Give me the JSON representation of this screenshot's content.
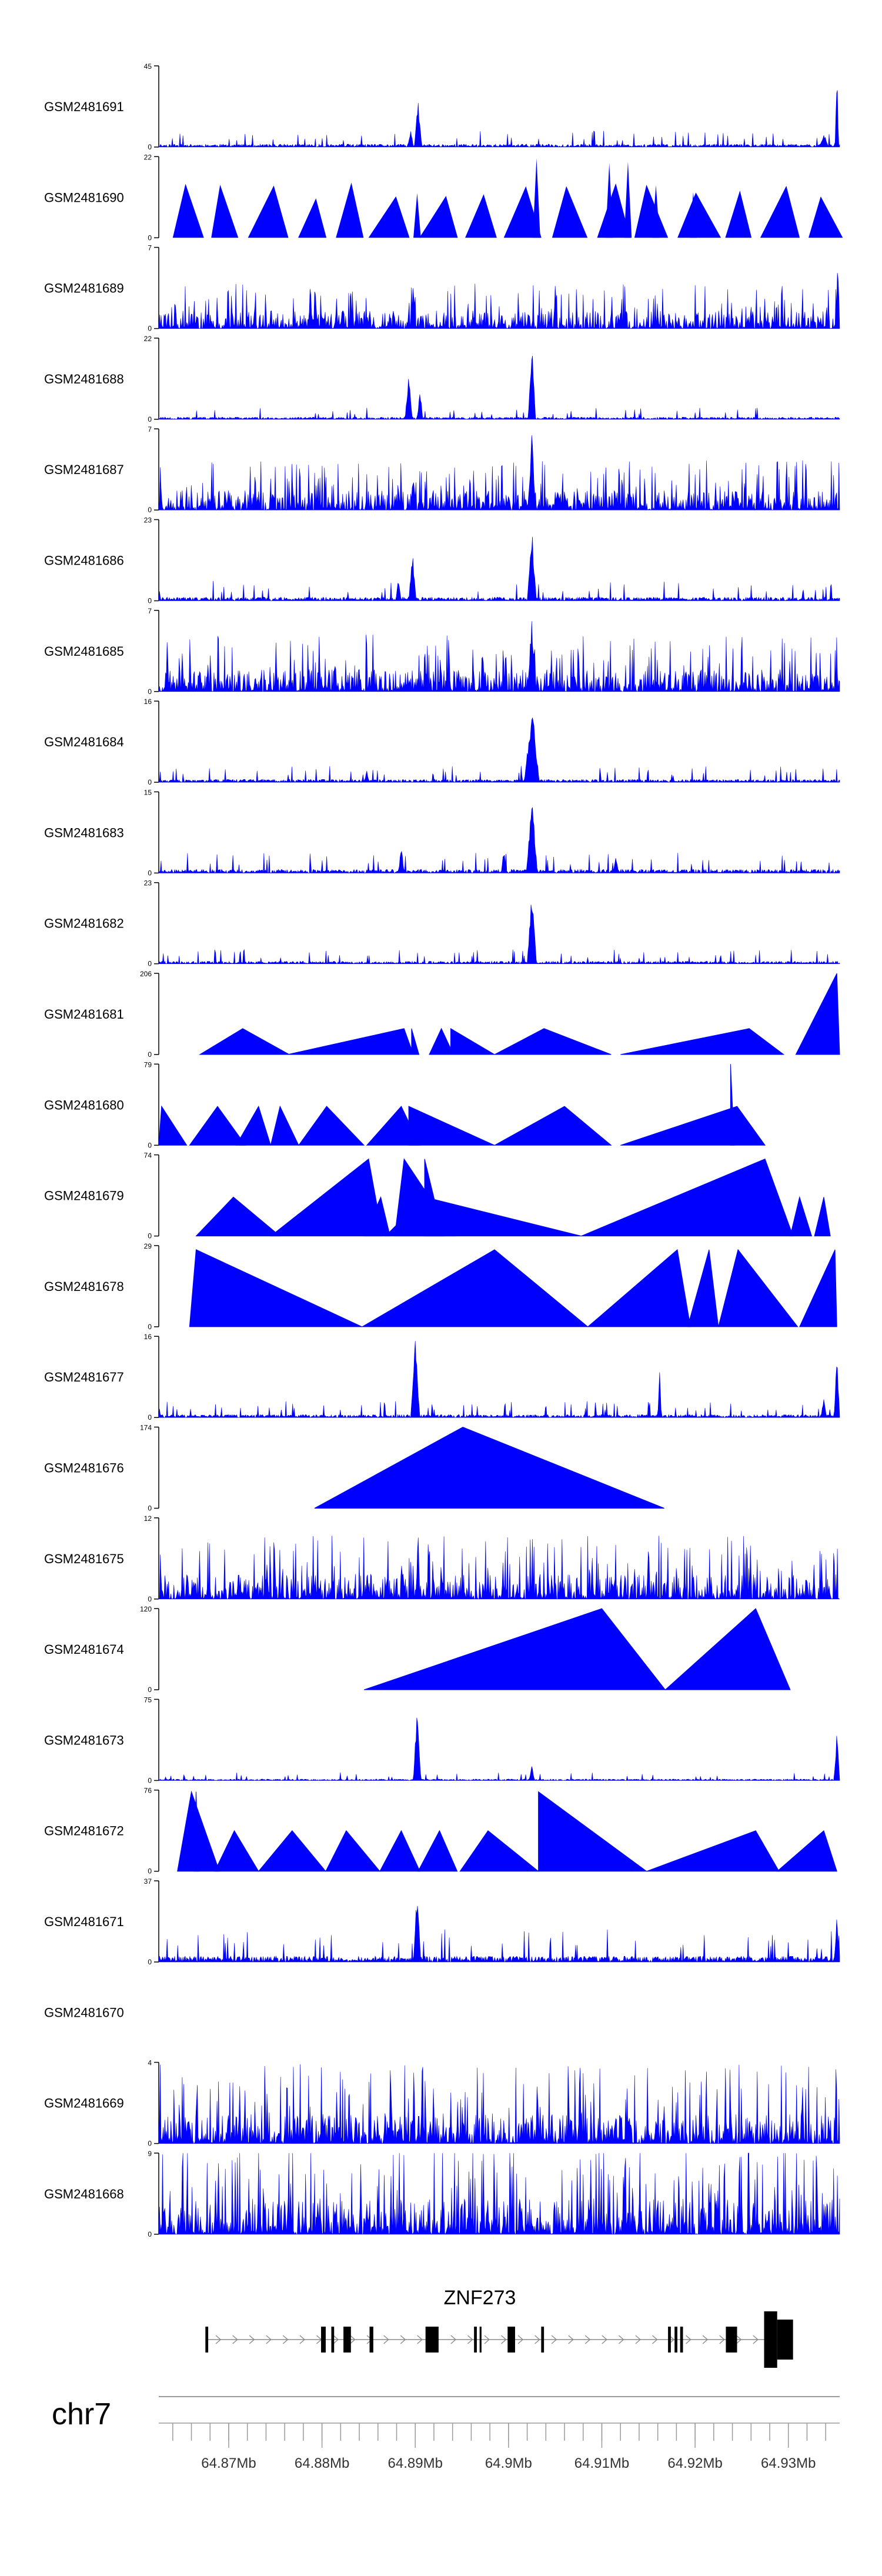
{
  "chart_data": {
    "type": "area",
    "chromosome": "chr7",
    "x_axis": {
      "min": 64.8625,
      "max": 64.9355,
      "tick_labels": [
        "64.87Mb",
        "64.88Mb",
        "64.89Mb",
        "64.9Mb",
        "64.91Mb",
        "64.92Mb",
        "64.93Mb"
      ],
      "tick_values": [
        64.87,
        64.88,
        64.89,
        64.9,
        64.91,
        64.92,
        64.93
      ],
      "minor_step": 0.002
    },
    "gene": {
      "name": "ZNF273",
      "strand": "+",
      "start": 64.8675,
      "end": 64.9305,
      "exons": [
        {
          "s": 64.8675,
          "e": 64.8678,
          "h": "mid"
        },
        {
          "s": 64.8799,
          "e": 64.8804,
          "h": "mid"
        },
        {
          "s": 64.881,
          "e": 64.8813,
          "h": "mid"
        },
        {
          "s": 64.8823,
          "e": 64.8831,
          "h": "mid"
        },
        {
          "s": 64.8851,
          "e": 64.8855,
          "h": "mid"
        },
        {
          "s": 64.8911,
          "e": 64.8925,
          "h": "mid"
        },
        {
          "s": 64.8963,
          "e": 64.8966,
          "h": "mid"
        },
        {
          "s": 64.8969,
          "e": 64.8971,
          "h": "mid"
        },
        {
          "s": 64.8999,
          "e": 64.9007,
          "h": "mid"
        },
        {
          "s": 64.9035,
          "e": 64.9038,
          "h": "mid"
        },
        {
          "s": 64.9171,
          "e": 64.9174,
          "h": "mid"
        },
        {
          "s": 64.9178,
          "e": 64.9181,
          "h": "mid"
        },
        {
          "s": 64.9184,
          "e": 64.9187,
          "h": "mid"
        },
        {
          "s": 64.9233,
          "e": 64.9245,
          "h": "mid"
        },
        {
          "s": 64.9274,
          "e": 64.9288,
          "h": "tall"
        },
        {
          "s": 64.9288,
          "e": 64.9305,
          "h": "big"
        }
      ]
    },
    "series": [
      {
        "name": "GSM2481691",
        "ymin": 0,
        "ymax": 45,
        "style": "noisy",
        "base": 0.04,
        "peaks": [
          {
            "x": 64.8903,
            "h": 0.62,
            "w": 0.0004
          },
          {
            "x": 64.8895,
            "h": 0.25,
            "w": 0.0003
          },
          {
            "x": 64.9338,
            "h": 0.18,
            "w": 0.0005
          },
          {
            "x": 64.9352,
            "h": 1.0,
            "w": 0.0002
          }
        ],
        "seed": 11
      },
      {
        "name": "GSM2481690",
        "ymin": 0,
        "ymax": 22,
        "style": "triangles",
        "base": 0.6,
        "spikes": [
          {
            "x": 64.903,
            "h": 0.98
          },
          {
            "x": 64.9108,
            "h": 0.92
          },
          {
            "x": 64.9128,
            "h": 0.94
          },
          {
            "x": 64.9158,
            "h": 0.65
          },
          {
            "x": 64.9198,
            "h": 0.56
          },
          {
            "x": 64.8902,
            "h": 0.55
          }
        ],
        "seed": 22
      },
      {
        "name": "GSM2481689",
        "ymin": 0,
        "ymax": 7,
        "style": "dense",
        "base": 0.2,
        "peaks": [
          {
            "x": 64.9353,
            "h": 1.0,
            "w": 0.0002
          },
          {
            "x": 64.8793,
            "h": 0.62,
            "w": 0.0002
          },
          {
            "x": 64.8898,
            "h": 0.6,
            "w": 0.0003
          }
        ],
        "seed": 33
      },
      {
        "name": "GSM2481688",
        "ymin": 0,
        "ymax": 22,
        "style": "noisy",
        "base": 0.03,
        "peaks": [
          {
            "x": 64.9025,
            "h": 1.0,
            "w": 0.0004
          },
          {
            "x": 64.8893,
            "h": 0.58,
            "w": 0.0004
          },
          {
            "x": 64.8905,
            "h": 0.4,
            "w": 0.0003
          }
        ],
        "seed": 44
      },
      {
        "name": "GSM2481687",
        "ymin": 0,
        "ymax": 7,
        "style": "dense",
        "base": 0.22,
        "peaks": [
          {
            "x": 64.9025,
            "h": 1.0,
            "w": 0.0004
          },
          {
            "x": 64.8898,
            "h": 0.55,
            "w": 0.0003
          }
        ],
        "seed": 55
      },
      {
        "name": "GSM2481686",
        "ymin": 0,
        "ymax": 23,
        "style": "noisy",
        "base": 0.05,
        "peaks": [
          {
            "x": 64.9025,
            "h": 0.95,
            "w": 0.0005
          },
          {
            "x": 64.8897,
            "h": 0.62,
            "w": 0.0004
          },
          {
            "x": 64.8882,
            "h": 0.3,
            "w": 0.0003
          }
        ],
        "seed": 66
      },
      {
        "name": "GSM2481685",
        "ymin": 0,
        "ymax": 7,
        "style": "dense",
        "base": 0.25,
        "peaks": [
          {
            "x": 64.9025,
            "h": 0.92,
            "w": 0.0005
          }
        ],
        "seed": 77
      },
      {
        "name": "GSM2481684",
        "ymin": 0,
        "ymax": 16,
        "style": "noisy",
        "base": 0.04,
        "peaks": [
          {
            "x": 64.9025,
            "h": 0.98,
            "w": 0.0008
          },
          {
            "x": 64.8848,
            "h": 0.15,
            "w": 0.0003
          }
        ],
        "seed": 88
      },
      {
        "name": "GSM2481683",
        "ymin": 0,
        "ymax": 15,
        "style": "noisy",
        "base": 0.05,
        "peaks": [
          {
            "x": 64.9025,
            "h": 0.98,
            "w": 0.0006
          },
          {
            "x": 64.8885,
            "h": 0.38,
            "w": 0.0003
          },
          {
            "x": 64.8995,
            "h": 0.3,
            "w": 0.0003
          },
          {
            "x": 64.9115,
            "h": 0.22,
            "w": 0.0003
          }
        ],
        "seed": 99
      },
      {
        "name": "GSM2481682",
        "ymin": 0,
        "ymax": 23,
        "style": "noisy",
        "base": 0.035,
        "peaks": [
          {
            "x": 64.9025,
            "h": 1.0,
            "w": 0.0005
          }
        ],
        "seed": 111
      },
      {
        "name": "GSM2481681",
        "ymin": 0,
        "ymax": 206,
        "style": "sparse",
        "tris": [
          [
            64.8669,
            64.8715,
            64.8765,
            0.32
          ],
          [
            64.8763,
            64.8888,
            64.8898,
            0.32
          ],
          [
            64.8896,
            64.8896,
            64.8904,
            0.32
          ],
          [
            64.8915,
            64.8928,
            64.8941,
            0.32
          ],
          [
            64.8938,
            64.8938,
            64.8985,
            0.32
          ],
          [
            64.8985,
            64.9038,
            64.911,
            0.32
          ],
          [
            64.912,
            64.9258,
            64.9295,
            0.32
          ],
          [
            64.9308,
            64.9352,
            64.9355,
            1.0
          ]
        ]
      },
      {
        "name": "GSM2481680",
        "ymin": 0,
        "ymax": 79,
        "style": "sparse",
        "tris": [
          [
            64.8625,
            64.8628,
            64.8655,
            0.48
          ],
          [
            64.8658,
            64.8688,
            64.8718,
            0.48
          ],
          [
            64.8708,
            64.8732,
            64.8745,
            0.48
          ],
          [
            64.8745,
            64.8755,
            64.8775,
            0.48
          ],
          [
            64.8775,
            64.8805,
            64.8845,
            0.48
          ],
          [
            64.8848,
            64.8885,
            64.8905,
            0.48
          ],
          [
            64.8893,
            64.8893,
            64.8985,
            0.48
          ],
          [
            64.8985,
            64.906,
            64.911,
            0.48
          ],
          [
            64.912,
            64.9245,
            64.9275,
            0.48
          ],
          [
            64.9238,
            64.9238,
            64.9242,
            1.0
          ]
        ]
      },
      {
        "name": "GSM2481679",
        "ymin": 0,
        "ymax": 74,
        "style": "sparse",
        "tris": [
          [
            64.8665,
            64.8705,
            64.8755,
            0.48
          ],
          [
            64.8745,
            64.885,
            64.8865,
            0.95
          ],
          [
            64.8845,
            64.8863,
            64.8873,
            0.48
          ],
          [
            64.8878,
            64.8888,
            64.8943,
            0.95
          ],
          [
            64.8868,
            64.891,
            64.9078,
            0.48
          ],
          [
            64.891,
            64.891,
            64.893,
            0.95
          ],
          [
            64.9078,
            64.9275,
            64.9305,
            0.95
          ],
          [
            64.9302,
            64.9312,
            64.9325,
            0.48
          ],
          [
            64.9328,
            64.9338,
            64.9345,
            0.48
          ]
        ]
      },
      {
        "name": "GSM2481678",
        "ymin": 0,
        "ymax": 29,
        "style": "sparse",
        "tris": [
          [
            64.8658,
            64.8665,
            64.8843,
            0.95
          ],
          [
            64.8843,
            64.8985,
            64.9085,
            0.95
          ],
          [
            64.9085,
            64.9181,
            64.9195,
            0.95
          ],
          [
            64.9192,
            64.9215,
            64.9225,
            0.95
          ],
          [
            64.9225,
            64.9246,
            64.931,
            0.95
          ],
          [
            64.9312,
            64.935,
            64.9352,
            0.95
          ]
        ]
      },
      {
        "name": "GSM2481677",
        "ymin": 0,
        "ymax": 16,
        "style": "noisy",
        "base": 0.04,
        "peaks": [
          {
            "x": 64.89,
            "h": 0.95,
            "w": 0.0005
          },
          {
            "x": 64.9162,
            "h": 0.62,
            "w": 0.0002
          },
          {
            "x": 64.9352,
            "h": 0.92,
            "w": 0.0003
          },
          {
            "x": 64.9338,
            "h": 0.3,
            "w": 0.0003
          }
        ],
        "seed": 177
      },
      {
        "name": "GSM2481676",
        "ymin": 0,
        "ymax": 174,
        "style": "sparse",
        "tris": [
          [
            64.8792,
            64.8951,
            64.9167,
            1.0
          ]
        ]
      },
      {
        "name": "GSM2481675",
        "ymin": 0,
        "ymax": 12,
        "style": "dense",
        "base": 0.28,
        "peaks": [
          {
            "x": 64.8903,
            "h": 1.0,
            "w": 0.0002
          },
          {
            "x": 64.915,
            "h": 0.8,
            "w": 0.0002
          }
        ],
        "seed": 175
      },
      {
        "name": "GSM2481674",
        "ymin": 0,
        "ymax": 120,
        "style": "sparse",
        "tris": [
          [
            64.8845,
            64.91,
            64.9168,
            1.0
          ],
          [
            64.9168,
            64.9265,
            64.9302,
            1.0
          ]
        ]
      },
      {
        "name": "GSM2481673",
        "ymin": 0,
        "ymax": 75,
        "style": "noisy",
        "base": 0.02,
        "peaks": [
          {
            "x": 64.8902,
            "h": 0.96,
            "w": 0.0004
          },
          {
            "x": 64.9352,
            "h": 0.62,
            "w": 0.0003
          },
          {
            "x": 64.9025,
            "h": 0.2,
            "w": 0.0003
          }
        ],
        "seed": 173
      },
      {
        "name": "GSM2481672",
        "ymin": 0,
        "ymax": 76,
        "style": "sparse",
        "tris": [
          [
            64.8645,
            64.866,
            64.869,
            0.98
          ],
          [
            64.8663,
            64.8665,
            64.8668,
            0.98
          ],
          [
            64.8685,
            64.8706,
            64.8732,
            0.5
          ],
          [
            64.8732,
            64.8768,
            64.8804,
            0.5
          ],
          [
            64.8804,
            64.8826,
            64.8862,
            0.5
          ],
          [
            64.8862,
            64.8885,
            64.8905,
            0.5
          ],
          [
            64.8903,
            64.8926,
            64.8945,
            0.5
          ],
          [
            64.8948,
            64.8978,
            64.9032,
            0.5
          ],
          [
            64.9032,
            64.9032,
            64.9148,
            0.98
          ],
          [
            64.9148,
            64.9265,
            64.929,
            0.5
          ],
          [
            64.9288,
            64.9338,
            64.9352,
            0.5
          ]
        ]
      },
      {
        "name": "GSM2481671",
        "ymin": 0,
        "ymax": 37,
        "style": "noisy",
        "base": 0.08,
        "peaks": [
          {
            "x": 64.8902,
            "h": 0.96,
            "w": 0.0004
          },
          {
            "x": 64.9352,
            "h": 0.58,
            "w": 0.0003
          }
        ],
        "seed": 171
      },
      {
        "name": "GSM2481670",
        "ymin": null,
        "ymax": null,
        "style": "empty"
      },
      {
        "name": "GSM2481669",
        "ymin": 0,
        "ymax": 4,
        "style": "dense",
        "base": 0.35,
        "seed": 169
      },
      {
        "name": "GSM2481668",
        "ymin": 0,
        "ymax": 9,
        "style": "dense",
        "base": 0.4,
        "seed": 168
      }
    ]
  }
}
